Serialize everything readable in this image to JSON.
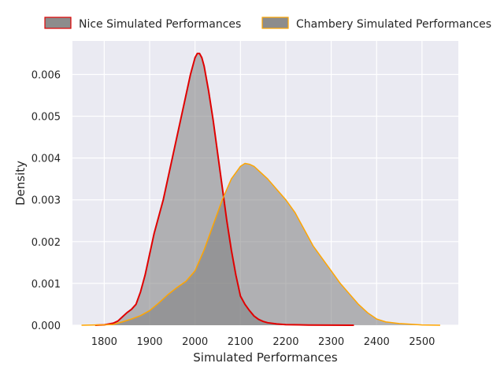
{
  "chart_data": {
    "type": "area",
    "title": "",
    "xlabel": "Simulated Performances",
    "ylabel": "Density",
    "xlim": [
      1730,
      2580
    ],
    "ylim": [
      0,
      0.0068
    ],
    "grid": true,
    "legend_position": "top, above plot",
    "x_ticks": [
      1800,
      1900,
      2000,
      2100,
      2200,
      2300,
      2400,
      2500
    ],
    "x_tick_labels": [
      "1800",
      "1900",
      "2000",
      "2100",
      "2200",
      "2300",
      "2400",
      "2500"
    ],
    "y_ticks": [
      0,
      0.001,
      0.002,
      0.003,
      0.004,
      0.005,
      0.006
    ],
    "y_tick_labels": [
      "0.000",
      "0.001",
      "0.002",
      "0.003",
      "0.004",
      "0.005",
      "0.006"
    ],
    "series": [
      {
        "name": "Nice Simulated Performances",
        "line_color": "#e00000",
        "fill_color": "#808080",
        "x": [
          1780,
          1800,
          1820,
          1830,
          1840,
          1850,
          1860,
          1870,
          1880,
          1890,
          1900,
          1910,
          1920,
          1930,
          1940,
          1950,
          1960,
          1970,
          1980,
          1990,
          2000,
          2005,
          2010,
          2015,
          2020,
          2030,
          2040,
          2050,
          2060,
          2070,
          2080,
          2090,
          2100,
          2110,
          2120,
          2130,
          2140,
          2150,
          2160,
          2180,
          2200,
          2250,
          2300,
          2350
        ],
        "y": [
          0.0,
          1e-05,
          5e-05,
          0.0001,
          0.0002,
          0.0003,
          0.00038,
          0.0005,
          0.0008,
          0.0012,
          0.0017,
          0.0022,
          0.0026,
          0.003,
          0.0035,
          0.004,
          0.0045,
          0.005,
          0.0055,
          0.006,
          0.0064,
          0.0065,
          0.0065,
          0.0064,
          0.0062,
          0.0056,
          0.0049,
          0.0041,
          0.0033,
          0.0025,
          0.0018,
          0.0012,
          0.0007,
          0.0005,
          0.00035,
          0.00022,
          0.00014,
          9e-05,
          6e-05,
          3e-05,
          1.5e-05,
          5e-06,
          2e-06,
          0.0
        ]
      },
      {
        "name": "Chambery Simulated Performances",
        "line_color": "#ffa500",
        "fill_color": "#808080",
        "x": [
          1750,
          1800,
          1820,
          1840,
          1860,
          1880,
          1900,
          1920,
          1940,
          1960,
          1980,
          2000,
          2020,
          2040,
          2060,
          2080,
          2100,
          2110,
          2120,
          2130,
          2140,
          2160,
          2180,
          2200,
          2220,
          2240,
          2260,
          2280,
          2300,
          2320,
          2340,
          2360,
          2380,
          2400,
          2420,
          2450,
          2500,
          2540
        ],
        "y": [
          0.0,
          1e-05,
          2e-05,
          8e-05,
          0.00015,
          0.00023,
          0.00035,
          0.00053,
          0.00073,
          0.0009,
          0.00105,
          0.0013,
          0.0018,
          0.0024,
          0.003,
          0.0035,
          0.0038,
          0.00387,
          0.00385,
          0.0038,
          0.0037,
          0.0035,
          0.00325,
          0.003,
          0.0027,
          0.0023,
          0.0019,
          0.0016,
          0.0013,
          0.001,
          0.00075,
          0.0005,
          0.0003,
          0.00015,
          8e-05,
          4e-05,
          8e-06,
          0.0
        ]
      }
    ]
  }
}
